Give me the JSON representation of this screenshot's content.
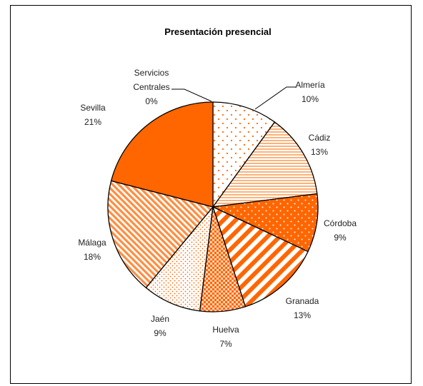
{
  "chart_data": {
    "type": "pie",
    "title": "Presentación presencial",
    "colors": {
      "primary": "#ff6600",
      "pattern": "#ff6600",
      "background": "#ffffff",
      "edge": "#000000"
    },
    "slices": [
      {
        "name": "Almería",
        "label": "10%",
        "value": 10,
        "fill": "dots-sparse"
      },
      {
        "name": "Cádiz",
        "label": "13%",
        "value": 13,
        "fill": "h-stripes"
      },
      {
        "name": "Córdoba",
        "label": "9%",
        "value": 9,
        "fill": "dots-orange"
      },
      {
        "name": "Granada",
        "label": "13%",
        "value": 13,
        "fill": "diag-wide"
      },
      {
        "name": "Huelva",
        "label": "7%",
        "value": 7,
        "fill": "check"
      },
      {
        "name": "Jaén",
        "label": "9%",
        "value": 9,
        "fill": "dots-dense"
      },
      {
        "name": "Málaga",
        "label": "18%",
        "value": 18,
        "fill": "diag-narrow"
      },
      {
        "name": "Sevilla",
        "label": "21%",
        "value": 21,
        "fill": "solid"
      },
      {
        "name": "Servicios\nCentrales",
        "label": "0%",
        "value": 0,
        "fill": "solid"
      }
    ]
  }
}
